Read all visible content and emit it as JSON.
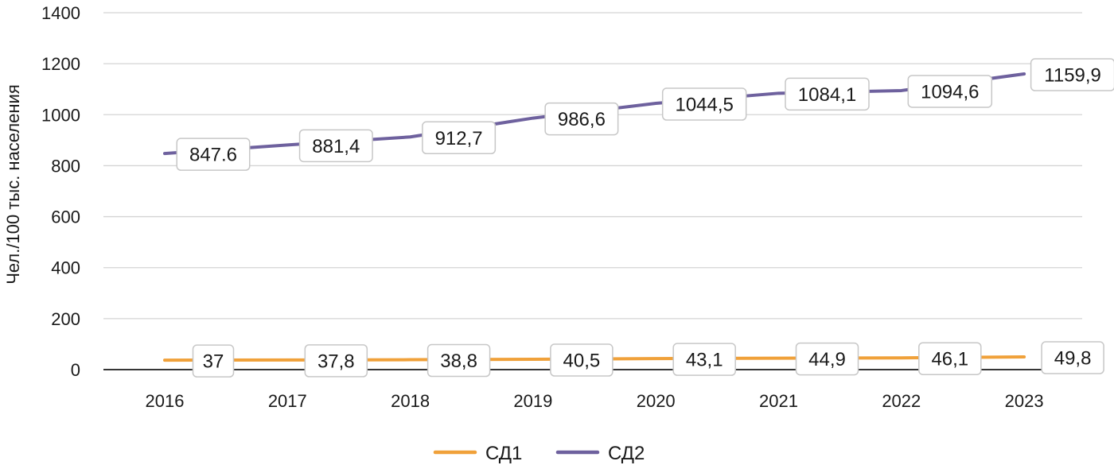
{
  "chart_data": {
    "type": "line",
    "title": "",
    "xlabel": "",
    "ylabel": "Чел./100 тыс. населения",
    "x": [
      "2016",
      "2017",
      "2018",
      "2019",
      "2020",
      "2021",
      "2022",
      "2023"
    ],
    "ylim": [
      0,
      1400
    ],
    "yticks": [
      "0",
      "200",
      "400",
      "600",
      "800",
      "1000",
      "1200",
      "1400"
    ],
    "grid": true,
    "legend_position": "bottom",
    "series": [
      {
        "name": "СД1",
        "color": "#F0A13A",
        "values": [
          37,
          37.8,
          38.8,
          40.5,
          43.1,
          44.9,
          46.1,
          49.8
        ],
        "labels": [
          "37",
          "37,8",
          "38,8",
          "40,5",
          "43,1",
          "44,9",
          "46,1",
          "49,8"
        ]
      },
      {
        "name": "СД2",
        "color": "#6E619E",
        "values": [
          847.6,
          881.4,
          912.7,
          986.6,
          1044.5,
          1084.1,
          1094.6,
          1159.9
        ],
        "labels": [
          "847.6",
          "881,4",
          "912,7",
          "986,6",
          "1044,5",
          "1084,1",
          "1094,6",
          "1159,9"
        ]
      }
    ]
  }
}
